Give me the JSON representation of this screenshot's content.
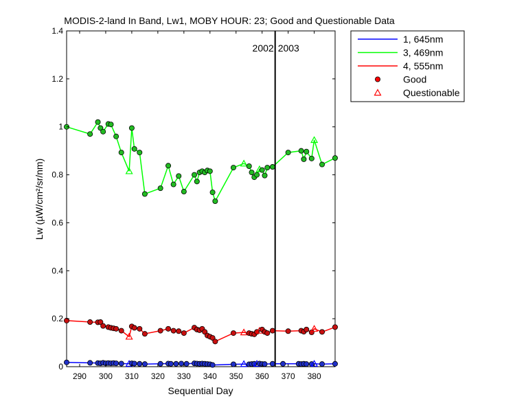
{
  "chart_data": {
    "type": "line",
    "title": "MODIS-2-land In Band,  Lw1, MOBY HOUR: 23;  Good and Questionable Data",
    "xlabel": "Sequential Day",
    "ylabel": "Lw (µW/cm²/sr/nm)",
    "xlim": [
      285,
      388
    ],
    "ylim": [
      0,
      1.4
    ],
    "xticks": [
      290,
      300,
      310,
      320,
      330,
      340,
      350,
      360,
      370,
      380
    ],
    "yticks": [
      0,
      0.2,
      0.4,
      0.6,
      0.8,
      1,
      1.2,
      1.4
    ],
    "xtick_labels": [
      "290",
      "300",
      "310",
      "320",
      "330",
      "340",
      "350",
      "360",
      "370",
      "380"
    ],
    "ytick_labels": [
      "0",
      "0.2",
      "0.4",
      "0.6",
      "0.8",
      "1",
      "1.2",
      "1.4"
    ],
    "grid": false,
    "legend_position": "outside-top-right",
    "year_divider": {
      "x": 365,
      "left_label": "2002",
      "right_label": "2003"
    },
    "series": [
      {
        "name": "1, 645nm",
        "color": "#0000ff",
        "marker_color": "#2030c8",
        "points": [
          [
            285,
            0.018,
            "g"
          ],
          [
            294,
            0.016,
            "g"
          ],
          [
            297,
            0.015,
            "g"
          ],
          [
            298,
            0.014,
            "g"
          ],
          [
            299,
            0.016,
            "g"
          ],
          [
            300,
            0.014,
            "g"
          ],
          [
            301,
            0.015,
            "g"
          ],
          [
            302,
            0.014,
            "g"
          ],
          [
            303,
            0.015,
            "g"
          ],
          [
            304,
            0.014,
            "g"
          ],
          [
            306,
            0.013,
            "g"
          ],
          [
            309,
            0.012,
            "q"
          ],
          [
            310,
            0.014,
            "g"
          ],
          [
            311,
            0.013,
            "g"
          ],
          [
            313,
            0.012,
            "g"
          ],
          [
            315,
            0.011,
            "g"
          ],
          [
            321,
            0.012,
            "g"
          ],
          [
            324,
            0.013,
            "g"
          ],
          [
            325,
            0.012,
            "g"
          ],
          [
            327,
            0.012,
            "g"
          ],
          [
            329,
            0.013,
            "g"
          ],
          [
            331,
            0.012,
            "g"
          ],
          [
            334,
            0.014,
            "g"
          ],
          [
            335,
            0.013,
            "g"
          ],
          [
            336,
            0.012,
            "g"
          ],
          [
            337,
            0.013,
            "g"
          ],
          [
            338,
            0.012,
            "g"
          ],
          [
            339,
            0.011,
            "g"
          ],
          [
            340,
            0.01,
            "g"
          ],
          [
            341,
            0.007,
            "g"
          ],
          [
            349,
            0.01,
            "g"
          ],
          [
            353,
            0.011,
            "q"
          ],
          [
            355,
            0.01,
            "g"
          ],
          [
            356,
            0.011,
            "g"
          ],
          [
            357,
            0.012,
            "g"
          ],
          [
            358,
            0.012,
            "q"
          ],
          [
            359,
            0.013,
            "g"
          ],
          [
            360,
            0.011,
            "g"
          ],
          [
            361,
            0.011,
            "g"
          ],
          [
            364,
            0.012,
            "g"
          ],
          [
            368,
            0.012,
            "g"
          ],
          [
            374,
            0.012,
            "g"
          ],
          [
            375,
            0.011,
            "g"
          ],
          [
            376,
            0.012,
            "g"
          ],
          [
            377,
            0.011,
            "g"
          ],
          [
            379,
            0.011,
            "g"
          ],
          [
            380,
            0.012,
            "q"
          ],
          [
            383,
            0.011,
            "g"
          ],
          [
            388,
            0.012,
            "g"
          ]
        ]
      },
      {
        "name": "3, 469nm",
        "color": "#00ff00",
        "marker_color": "#22bb22",
        "points": [
          [
            285,
            1.0,
            "g"
          ],
          [
            294,
            0.97,
            "g"
          ],
          [
            297,
            1.02,
            "g"
          ],
          [
            298,
            0.995,
            "g"
          ],
          [
            299,
            0.98,
            "g"
          ],
          [
            301,
            1.012,
            "g"
          ],
          [
            302,
            1.01,
            "g"
          ],
          [
            304,
            0.96,
            "g"
          ],
          [
            306,
            0.893,
            "g"
          ],
          [
            309,
            0.815,
            "q"
          ],
          [
            310,
            0.995,
            "g"
          ],
          [
            311,
            0.908,
            "g"
          ],
          [
            313,
            0.893,
            "g"
          ],
          [
            315,
            0.72,
            "g"
          ],
          [
            321,
            0.744,
            "g"
          ],
          [
            324,
            0.838,
            "g"
          ],
          [
            326,
            0.76,
            "g"
          ],
          [
            328,
            0.795,
            "g"
          ],
          [
            330,
            0.73,
            "g"
          ],
          [
            334,
            0.8,
            "g"
          ],
          [
            335,
            0.772,
            "g"
          ],
          [
            336,
            0.81,
            "g"
          ],
          [
            337,
            0.815,
            "g"
          ],
          [
            338,
            0.81,
            "g"
          ],
          [
            339,
            0.818,
            "g"
          ],
          [
            340,
            0.815,
            "g"
          ],
          [
            341,
            0.727,
            "g"
          ],
          [
            342,
            0.69,
            "g"
          ],
          [
            349,
            0.83,
            "g"
          ],
          [
            353,
            0.847,
            "q"
          ],
          [
            355,
            0.836,
            "g"
          ],
          [
            356,
            0.81,
            "g"
          ],
          [
            357,
            0.79,
            "g"
          ],
          [
            358,
            0.8,
            "g"
          ],
          [
            359,
            0.823,
            "q"
          ],
          [
            360,
            0.82,
            "g"
          ],
          [
            361,
            0.797,
            "g"
          ],
          [
            362,
            0.83,
            "g"
          ],
          [
            364,
            0.833,
            "g"
          ],
          [
            370,
            0.893,
            "g"
          ],
          [
            375,
            0.9,
            "g"
          ],
          [
            376,
            0.865,
            "g"
          ],
          [
            377,
            0.897,
            "g"
          ],
          [
            379,
            0.868,
            "g"
          ],
          [
            380,
            0.945,
            "q"
          ],
          [
            383,
            0.843,
            "g"
          ],
          [
            388,
            0.87,
            "g"
          ]
        ]
      },
      {
        "name": "4, 555nm",
        "color": "#ff0000",
        "marker_color": "#c81010",
        "points": [
          [
            285,
            0.192,
            "g"
          ],
          [
            294,
            0.186,
            "g"
          ],
          [
            297,
            0.185,
            "g"
          ],
          [
            298,
            0.186,
            "g"
          ],
          [
            299,
            0.17,
            "g"
          ],
          [
            301,
            0.165,
            "g"
          ],
          [
            302,
            0.162,
            "g"
          ],
          [
            303,
            0.16,
            "g"
          ],
          [
            304,
            0.158,
            "g"
          ],
          [
            306,
            0.15,
            "g"
          ],
          [
            309,
            0.125,
            "q"
          ],
          [
            310,
            0.168,
            "g"
          ],
          [
            311,
            0.162,
            "g"
          ],
          [
            313,
            0.158,
            "g"
          ],
          [
            315,
            0.137,
            "g"
          ],
          [
            321,
            0.15,
            "g"
          ],
          [
            324,
            0.158,
            "g"
          ],
          [
            326,
            0.15,
            "g"
          ],
          [
            328,
            0.148,
            "g"
          ],
          [
            330,
            0.14,
            "g"
          ],
          [
            334,
            0.163,
            "g"
          ],
          [
            335,
            0.155,
            "g"
          ],
          [
            336,
            0.152,
            "g"
          ],
          [
            337,
            0.158,
            "g"
          ],
          [
            338,
            0.145,
            "g"
          ],
          [
            339,
            0.13,
            "g"
          ],
          [
            340,
            0.125,
            "g"
          ],
          [
            341,
            0.12,
            "g"
          ],
          [
            342,
            0.105,
            "g"
          ],
          [
            349,
            0.14,
            "g"
          ],
          [
            353,
            0.143,
            "q"
          ],
          [
            355,
            0.14,
            "g"
          ],
          [
            356,
            0.137,
            "g"
          ],
          [
            357,
            0.135,
            "g"
          ],
          [
            358,
            0.145,
            "g"
          ],
          [
            359,
            0.15,
            "q"
          ],
          [
            360,
            0.155,
            "g"
          ],
          [
            361,
            0.145,
            "g"
          ],
          [
            362,
            0.14,
            "g"
          ],
          [
            364,
            0.15,
            "g"
          ],
          [
            370,
            0.148,
            "g"
          ],
          [
            375,
            0.15,
            "g"
          ],
          [
            376,
            0.146,
            "g"
          ],
          [
            377,
            0.155,
            "g"
          ],
          [
            379,
            0.143,
            "g"
          ],
          [
            380,
            0.158,
            "q"
          ],
          [
            383,
            0.145,
            "g"
          ],
          [
            388,
            0.165,
            "g"
          ]
        ]
      }
    ],
    "legend": [
      {
        "label": "1, 645nm",
        "kind": "line",
        "color": "#0000ff"
      },
      {
        "label": "3, 469nm",
        "kind": "line",
        "color": "#00ff00"
      },
      {
        "label": "4, 555nm",
        "kind": "line",
        "color": "#ff0000"
      },
      {
        "label": "Good",
        "kind": "dot",
        "color": "#ff0000"
      },
      {
        "label": "Questionable",
        "kind": "triangle",
        "color": "#ff0000"
      }
    ]
  }
}
